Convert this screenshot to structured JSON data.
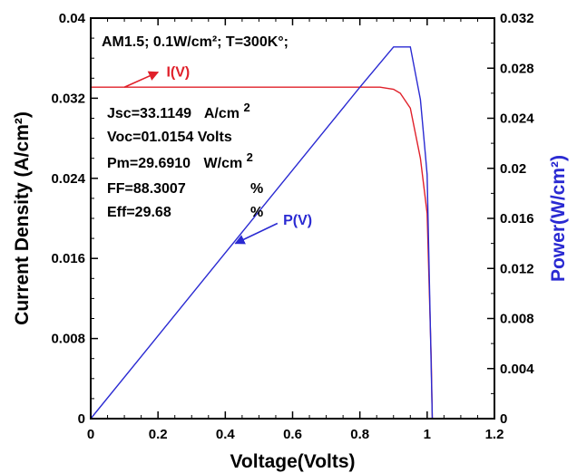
{
  "chart_data": {
    "type": "line",
    "title": "",
    "xlabel": "Voltage(Volts)",
    "ylabel": "Current Density (A/cm²)",
    "y2label": "Power(W/cm²)",
    "xlim": [
      0,
      1.2
    ],
    "ylim": [
      0,
      0.04
    ],
    "y2lim": [
      0,
      0.032
    ],
    "x_ticks": [
      "0",
      "0.2",
      "0.4",
      "0.6",
      "0.8",
      "1",
      "1.2"
    ],
    "y_ticks": [
      "0",
      "0.008",
      "0.016",
      "0.024",
      "0.032",
      "0.04"
    ],
    "y2_ticks": [
      "0",
      "0.004",
      "0.008",
      "0.012",
      "0.016",
      "0.02",
      "0.024",
      "0.028",
      "0.032"
    ],
    "grid": false,
    "colors": {
      "iv": "#e0202a",
      "pv": "#2a2ad2",
      "axis": "#000000"
    },
    "series": [
      {
        "name": "I(V)",
        "axis": "left",
        "x": [
          0,
          0.2,
          0.4,
          0.6,
          0.8,
          0.86,
          0.9,
          0.92,
          0.95,
          0.98,
          1.0,
          1.012,
          1.0154
        ],
        "y": [
          0.0331,
          0.0331,
          0.0331,
          0.0331,
          0.0331,
          0.0331,
          0.0329,
          0.0325,
          0.031,
          0.026,
          0.0205,
          0.006,
          0
        ]
      },
      {
        "name": "P(V)",
        "axis": "right",
        "x": [
          0,
          0.2,
          0.4,
          0.6,
          0.8,
          0.9,
          0.95,
          0.98,
          0.995,
          1.0,
          1.0154
        ],
        "y": [
          0,
          0.00662,
          0.01324,
          0.01986,
          0.02648,
          0.0297,
          0.0297,
          0.0255,
          0.021,
          0.0195,
          0
        ]
      }
    ],
    "annotations": {
      "conditions": "AM1.5; 0.1W/cm²; T=300K°;",
      "jsc": {
        "label": "Jsc=33.1149",
        "unit": "A/cm",
        "sup": "2"
      },
      "voc": {
        "label": "Voc=01.0154 Volts"
      },
      "pm": {
        "label": "Pm=29.6910",
        "unit": "W/cm",
        "sup": "2"
      },
      "ff": {
        "label": "FF=88.3007",
        "unit": "%"
      },
      "eff": {
        "label": "Eff=29.68",
        "unit": "%"
      }
    },
    "arrows": [
      {
        "label": "I(V)",
        "series": "I(V)",
        "from": [
          0.1,
          0.0331
        ],
        "to": [
          0.2,
          0.0346
        ],
        "label_at": [
          0.225,
          0.0346
        ]
      },
      {
        "label": "P(V)",
        "series": "P(V)",
        "from": [
          0.555,
          0.0195
        ],
        "to": [
          0.43,
          0.0175
        ],
        "label_at": [
          0.572,
          0.0198
        ]
      }
    ]
  }
}
